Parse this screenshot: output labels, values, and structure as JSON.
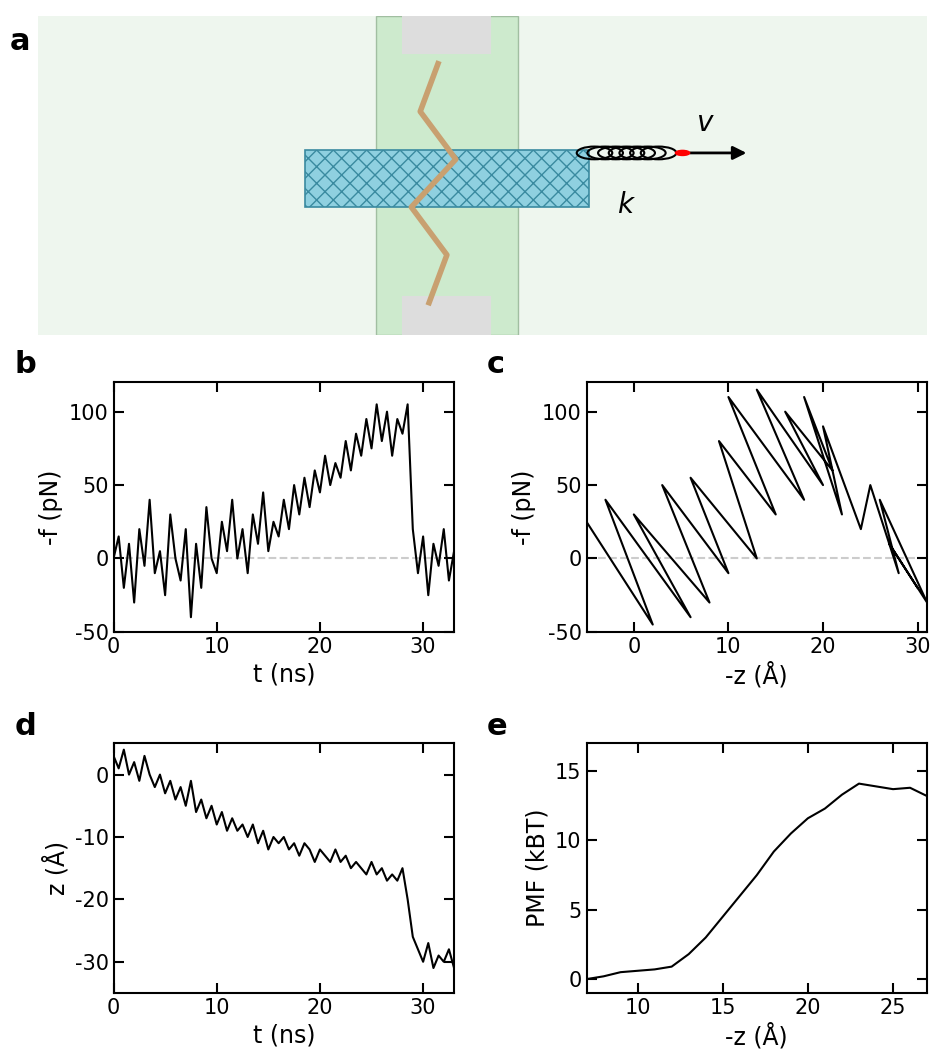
{
  "schematic": {
    "panel_label": "a",
    "spring_label": "k",
    "velocity_label": "v"
  },
  "chart_data": [
    {
      "type": "line",
      "panel_label": "b",
      "x_label": "t (ns)",
      "y_label": "-f (pN)",
      "color": "#000000",
      "hline": 0,
      "x": [
        0,
        0.5,
        1,
        1.5,
        2,
        2.5,
        3,
        3.5,
        4,
        4.5,
        5,
        5.5,
        6,
        6.5,
        7,
        7.5,
        8,
        8.5,
        9,
        9.5,
        10,
        10.5,
        11,
        11.5,
        12,
        12.5,
        13,
        13.5,
        14,
        14.5,
        15,
        15.5,
        16,
        16.5,
        17,
        17.5,
        18,
        18.5,
        19,
        19.5,
        20,
        20.5,
        21,
        21.5,
        22,
        22.5,
        23,
        23.5,
        24,
        24.5,
        25,
        25.5,
        26,
        26.5,
        27,
        27.5,
        28,
        28.5,
        29,
        29.5,
        30,
        30.5,
        31,
        31.5,
        32,
        32.5,
        33
      ],
      "values": [
        0,
        15,
        -20,
        10,
        -30,
        20,
        -5,
        40,
        -10,
        5,
        -25,
        30,
        0,
        -15,
        20,
        -40,
        10,
        -20,
        35,
        0,
        -10,
        25,
        5,
        40,
        0,
        20,
        -10,
        30,
        10,
        45,
        5,
        25,
        15,
        40,
        20,
        50,
        30,
        55,
        35,
        60,
        45,
        70,
        50,
        65,
        55,
        80,
        60,
        85,
        70,
        95,
        75,
        105,
        80,
        100,
        70,
        95,
        85,
        105,
        20,
        -10,
        15,
        -25,
        10,
        -5,
        20,
        -15,
        5
      ],
      "xlim": [
        0,
        33
      ],
      "xticks": [
        0,
        10,
        20,
        30
      ],
      "ylim": [
        -50,
        120
      ],
      "yticks": [
        -50,
        0,
        50,
        100
      ]
    },
    {
      "type": "line",
      "panel_label": "c",
      "x_label": "-z (Å)",
      "y_label": "-f (pN)",
      "color": "#000000",
      "hline": 0,
      "x": [
        -5,
        2,
        -3,
        6,
        0,
        8,
        3,
        10,
        6,
        13,
        9,
        15,
        10,
        18,
        13,
        20,
        16,
        21,
        18,
        22,
        20,
        24,
        25,
        28,
        26,
        31,
        27,
        30
      ],
      "values": [
        25,
        -45,
        40,
        -40,
        30,
        -30,
        50,
        -10,
        55,
        0,
        80,
        30,
        110,
        40,
        115,
        50,
        100,
        60,
        110,
        30,
        90,
        20,
        50,
        -10,
        40,
        -30,
        10,
        -20
      ],
      "xlim": [
        -5,
        31
      ],
      "xticks": [
        0,
        10,
        20,
        30
      ],
      "ylim": [
        -50,
        120
      ],
      "yticks": [
        -50,
        0,
        50,
        100
      ]
    },
    {
      "type": "line",
      "panel_label": "d",
      "x_label": "t (ns)",
      "y_label": "z (Å)",
      "color": "#000000",
      "x": [
        0,
        0.5,
        1,
        1.5,
        2,
        2.5,
        3,
        3.5,
        4,
        4.5,
        5,
        5.5,
        6,
        6.5,
        7,
        7.5,
        8,
        8.5,
        9,
        9.5,
        10,
        10.5,
        11,
        11.5,
        12,
        12.5,
        13,
        13.5,
        14,
        14.5,
        15,
        15.5,
        16,
        16.5,
        17,
        17.5,
        18,
        18.5,
        19,
        19.5,
        20,
        20.5,
        21,
        21.5,
        22,
        22.5,
        23,
        23.5,
        24,
        24.5,
        25,
        25.5,
        26,
        26.5,
        27,
        27.5,
        28,
        28.5,
        29,
        29.5,
        30,
        30.5,
        31,
        31.5,
        32,
        32.5,
        33
      ],
      "values": [
        3,
        1,
        4,
        0,
        2,
        -1,
        3,
        0,
        -2,
        0,
        -3,
        -1,
        -4,
        -2,
        -5,
        -1,
        -6,
        -4,
        -7,
        -5,
        -8,
        -6,
        -9,
        -7,
        -9,
        -8,
        -10,
        -8,
        -11,
        -9,
        -12,
        -10,
        -11,
        -10,
        -12,
        -11,
        -13,
        -11,
        -12,
        -14,
        -12,
        -13,
        -14,
        -12,
        -14,
        -13,
        -15,
        -14,
        -15,
        -16,
        -14,
        -16,
        -15,
        -17,
        -16,
        -17,
        -15,
        -20,
        -26,
        -28,
        -30,
        -27,
        -31,
        -29,
        -30,
        -28,
        -31
      ],
      "xlim": [
        0,
        33
      ],
      "xticks": [
        0,
        10,
        20,
        30
      ],
      "ylim": [
        -35,
        5
      ],
      "yticks": [
        -30,
        -20,
        -10,
        0
      ]
    },
    {
      "type": "line",
      "panel_label": "e",
      "x_label": "-z (Å)",
      "y_label": "PMF (kBT)",
      "color": "#000000",
      "x": [
        7,
        8,
        9,
        10,
        11,
        12,
        13,
        14,
        15,
        16,
        17,
        18,
        19,
        20,
        21,
        22,
        23,
        24,
        25,
        26,
        27
      ],
      "values": [
        0,
        0.2,
        0.5,
        0.6,
        0.7,
        0.9,
        1.8,
        3,
        4.5,
        6,
        7.5,
        9.2,
        10.5,
        11.6,
        12.3,
        13.3,
        14.1,
        13.9,
        13.7,
        13.8,
        13.2
      ],
      "xlim": [
        7,
        27
      ],
      "xticks": [
        10,
        15,
        20,
        25
      ],
      "ylim": [
        -1,
        17
      ],
      "yticks": [
        0,
        5,
        10,
        15
      ]
    }
  ]
}
